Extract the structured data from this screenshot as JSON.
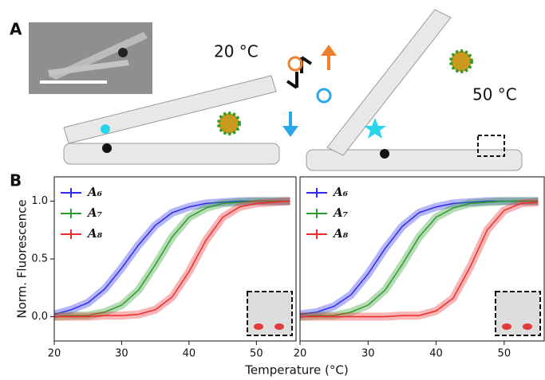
{
  "figure": {
    "panel_a": "A",
    "panel_b": "B",
    "temp_low": "20 °C",
    "temp_high": "50 °C"
  },
  "chart_data": [
    {
      "type": "line",
      "y_label": "Norm. Fluorescence",
      "x_label": "Temperature (°C)",
      "x": [
        20,
        22.5,
        25,
        27.5,
        30,
        32.5,
        35,
        37.5,
        40,
        42.5,
        45,
        47.5,
        50,
        52.5,
        55
      ],
      "xlim": [
        20,
        56
      ],
      "xticks": [
        20,
        30,
        40,
        50
      ],
      "ylim": [
        -0.21,
        1.21
      ],
      "yticks": [
        {
          "value": 0,
          "label": "0.0"
        },
        0.5,
        {
          "value": 1,
          "label": "1.0"
        }
      ],
      "legend": "upper left",
      "series": [
        {
          "name": "A₆",
          "color": "#2b2bef",
          "values": [
            0.02,
            0.06,
            0.12,
            0.24,
            0.42,
            0.62,
            0.79,
            0.9,
            0.95,
            0.98,
            0.99,
            1.0,
            1.0,
            1.0,
            1.0
          ]
        },
        {
          "name": "A₇",
          "color": "#2e9a2e",
          "values": [
            0.0,
            0.01,
            0.01,
            0.04,
            0.1,
            0.23,
            0.45,
            0.69,
            0.86,
            0.94,
            0.98,
            0.99,
            1.0,
            1.0,
            1.0
          ]
        },
        {
          "name": "A₈",
          "color": "#ef2b2b",
          "values": [
            0.0,
            0.0,
            0.0,
            0.01,
            0.01,
            0.02,
            0.06,
            0.17,
            0.39,
            0.66,
            0.86,
            0.95,
            0.98,
            0.99,
            1.0
          ]
        }
      ]
    },
    {
      "type": "line",
      "x": [
        20,
        22.5,
        25,
        27.5,
        30,
        32.5,
        35,
        37.5,
        40,
        42.5,
        45,
        47.5,
        50,
        52.5,
        55
      ],
      "xlim": [
        20,
        56
      ],
      "xticks": [
        20,
        30,
        40,
        50
      ],
      "ylim": [
        -0.21,
        1.21
      ],
      "legend": "upper left",
      "series": [
        {
          "name": "A₆",
          "color": "#2b2bef",
          "values": [
            0.02,
            0.04,
            0.09,
            0.19,
            0.37,
            0.59,
            0.78,
            0.9,
            0.95,
            0.98,
            0.99,
            1.0,
            1.0,
            1.0,
            1.0
          ]
        },
        {
          "name": "A₇",
          "color": "#2e9a2e",
          "values": [
            0.0,
            0.01,
            0.01,
            0.04,
            0.1,
            0.23,
            0.45,
            0.69,
            0.86,
            0.94,
            0.98,
            0.99,
            1.0,
            1.0,
            1.0
          ]
        },
        {
          "name": "A₈",
          "color": "#ef2b2b",
          "values": [
            0.0,
            0.0,
            0.0,
            0.0,
            0.0,
            0.0,
            0.01,
            0.01,
            0.05,
            0.16,
            0.43,
            0.75,
            0.92,
            0.98,
            0.99
          ]
        }
      ]
    }
  ]
}
